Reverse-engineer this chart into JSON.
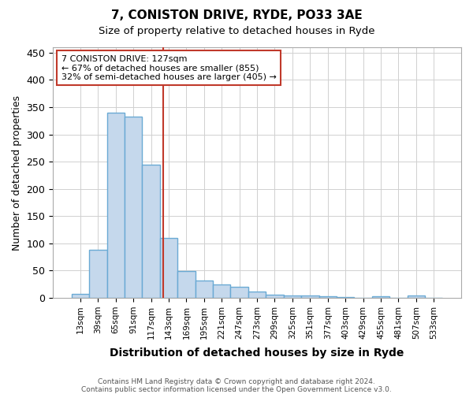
{
  "title1": "7, CONISTON DRIVE, RYDE, PO33 3AE",
  "title2": "Size of property relative to detached houses in Ryde",
  "xlabel": "Distribution of detached houses by size in Ryde",
  "ylabel": "Number of detached properties",
  "footnote1": "Contains HM Land Registry data © Crown copyright and database right 2024.",
  "footnote2": "Contains public sector information licensed under the Open Government Licence v3.0.",
  "bin_labels": [
    "13sqm",
    "39sqm",
    "65sqm",
    "91sqm",
    "117sqm",
    "143sqm",
    "169sqm",
    "195sqm",
    "221sqm",
    "247sqm",
    "273sqm",
    "299sqm",
    "325sqm",
    "351sqm",
    "377sqm",
    "403sqm",
    "429sqm",
    "455sqm",
    "481sqm",
    "507sqm",
    "533sqm"
  ],
  "bar_values": [
    7,
    88,
    340,
    333,
    245,
    110,
    49,
    32,
    25,
    21,
    11,
    6,
    5,
    5,
    3,
    2,
    0,
    3,
    0,
    4,
    0
  ],
  "bar_color": "#c5d8ec",
  "bar_edge_color": "#6aaad4",
  "bar_edge_width": 1.0,
  "red_line_x": 4.67,
  "red_line_color": "#c0392b",
  "annotation_text": "7 CONISTON DRIVE: 127sqm\n← 67% of detached houses are smaller (855)\n32% of semi-detached houses are larger (405) →",
  "annotation_box_color": "#c0392b",
  "ylim": [
    0,
    460
  ],
  "yticks": [
    0,
    50,
    100,
    150,
    200,
    250,
    300,
    350,
    400,
    450
  ],
  "grid_color": "#d0d0d0",
  "background_color": "#ffffff",
  "fig_width": 6.0,
  "fig_height": 5.0
}
